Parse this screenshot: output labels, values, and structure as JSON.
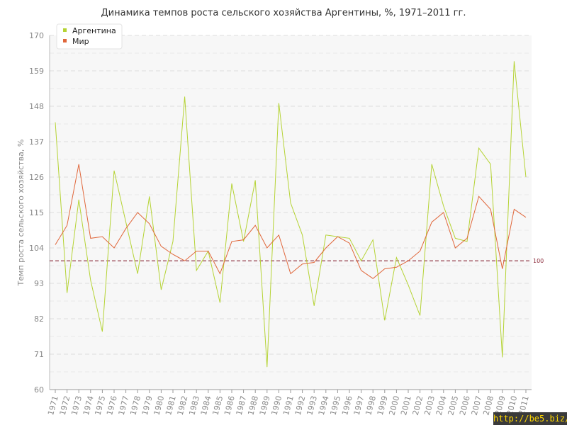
{
  "chart_data": {
    "type": "line",
    "title": "Динамика темпов роста сельского хозяйства Аргентины, %, 1971–2011 гг.",
    "xlabel": "",
    "ylabel": "Темп роста сельского хозяйства, %",
    "ylim": [
      60,
      170
    ],
    "yticks": [
      60,
      71,
      82,
      93,
      104,
      115,
      126,
      137,
      148,
      159,
      170
    ],
    "categories": [
      "1971",
      "1972",
      "1973",
      "1974",
      "1975",
      "1976",
      "1977",
      "1978",
      "1979",
      "1980",
      "1981",
      "1982",
      "1983",
      "1984",
      "1985",
      "1986",
      "1987",
      "1988",
      "1989",
      "1990",
      "1991",
      "1992",
      "1993",
      "1994",
      "1995",
      "1996",
      "1997",
      "1998",
      "1999",
      "2000",
      "2001",
      "2002",
      "2003",
      "2004",
      "2005",
      "2006",
      "2007",
      "2008",
      "2009",
      "2010",
      "2011"
    ],
    "series": [
      {
        "name": "Аргентина",
        "color": "#b5d334",
        "values": [
          143,
          90,
          119,
          94,
          78,
          128,
          112,
          96,
          120,
          91,
          106,
          151,
          97,
          103,
          87,
          124,
          106,
          125,
          67,
          149,
          118,
          108,
          86,
          108,
          107.5,
          107,
          100,
          106.5,
          81.5,
          101,
          92.5,
          83,
          130,
          117,
          107,
          106,
          135,
          130,
          70,
          162,
          126
        ]
      },
      {
        "name": "Мир",
        "color": "#e0663a",
        "values": [
          105,
          111,
          130,
          107,
          107.5,
          104,
          110,
          115,
          111.5,
          104.5,
          102,
          100,
          103,
          103,
          96,
          106,
          106.5,
          111,
          104,
          108,
          96,
          99,
          99.5,
          104,
          107.5,
          105.5,
          97,
          94.5,
          97.5,
          98,
          100,
          103,
          112,
          115,
          104,
          107,
          120,
          116,
          97.5,
          116,
          113.5
        ]
      }
    ],
    "reference_line": {
      "value": 100,
      "label": "100",
      "color": "#8b2a3a"
    },
    "grid": true,
    "legend_position": "top-left"
  },
  "watermark": "http://be5.biz/"
}
